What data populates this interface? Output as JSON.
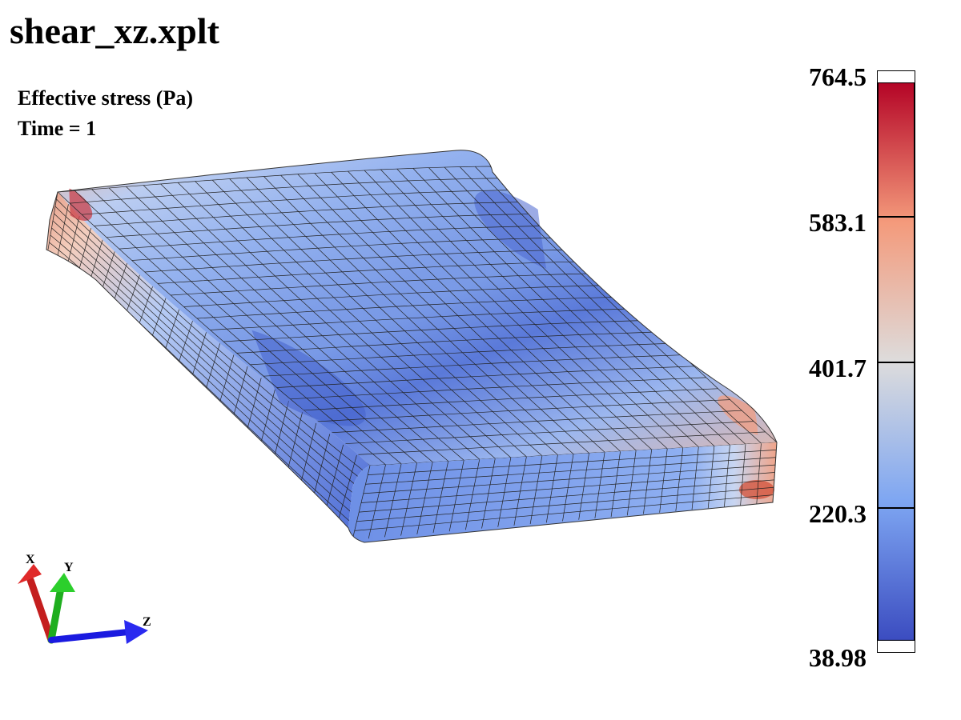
{
  "file_title": "shear_xz.xplt",
  "info": {
    "variable": "Effective stress (Pa)",
    "time_label": "Time = 1"
  },
  "legend": {
    "ticks": [
      "764.5",
      "583.1",
      "401.7",
      "220.3",
      "38.98"
    ],
    "colors": [
      "#b40426",
      "#f49a7b",
      "#dddcdc",
      "#7ea6f2",
      "#3b4cc0"
    ]
  },
  "axes": {
    "x": "X",
    "y": "Y",
    "z": "Z"
  },
  "axis_colors": {
    "x": "#d42020",
    "y": "#20c020",
    "z": "#1a1ae0"
  }
}
